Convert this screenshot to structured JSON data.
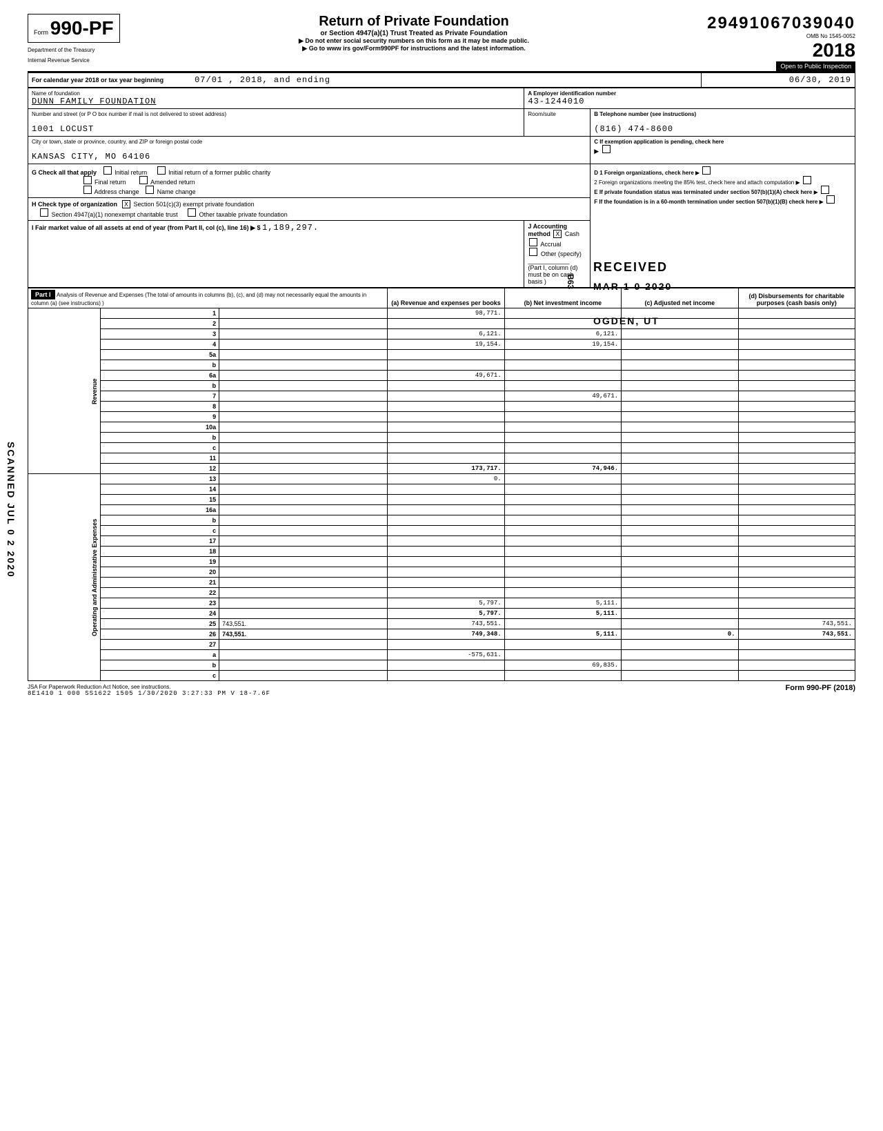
{
  "header": {
    "form_number": "990-PF",
    "form_prefix": "Form",
    "dept1": "Department of the Treasury",
    "dept2": "Internal Revenue Service",
    "title": "Return of Private Foundation",
    "subtitle": "or Section 4947(a)(1) Trust Treated as Private Foundation",
    "instr1": "▶ Do not enter social security numbers on this form as it may be made public.",
    "instr2": "▶ Go to www irs gov/Form990PF for instructions and the latest information.",
    "stamp_number": "29491067039040",
    "omb": "OMB No 1545-0052",
    "year": "2018",
    "open": "Open to Public Inspection"
  },
  "period": {
    "line": "For calendar year 2018 or tax year beginning",
    "begin": "07/01 , 2018, and ending",
    "end": "06/30, 2019"
  },
  "foundation": {
    "name_label": "Name of foundation",
    "name": "DUNN FAMILY FOUNDATION",
    "street_label": "Number and street (or P O  box number if mail is not delivered to street address)",
    "street": "1001 LOCUST",
    "room_label": "Room/suite",
    "city_label": "City or town, state or province, country, and ZIP or foreign postal code",
    "city": "KANSAS CITY, MO 64106",
    "ein_label": "A  Employer identification number",
    "ein": "43-1244010",
    "phone_label": "B  Telephone number (see instructions)",
    "phone": "(816) 474-8600",
    "c_label": "C  If exemption application is pending, check here",
    "d1": "D 1 Foreign organizations, check here",
    "d2": "2 Foreign organizations meeting the 85% test, check here and attach computation",
    "e": "E  If private foundation status was terminated under section 507(b)(1)(A) check here",
    "f": "F  If the foundation is in a 60-month termination under section 507(b)(1)(B) check here"
  },
  "checks": {
    "g_label": "G  Check all that apply",
    "g_initial": "Initial return",
    "g_initial_former": "Initial return of a former public charity",
    "g_final": "Final return",
    "g_amended": "Amended return",
    "g_address": "Address change",
    "g_name": "Name change",
    "h_label": "H  Check type of organization",
    "h_501c3": "Section 501(c)(3) exempt private foundation",
    "h_4947": "Section 4947(a)(1) nonexempt charitable trust",
    "h_other_tax": "Other taxable private foundation",
    "i_label": "I   Fair market value of all assets at end of year (from Part II, col (c), line 16) ▶ $",
    "i_value": "1,189,297.",
    "j_label": "J Accounting method",
    "j_cash": "Cash",
    "j_accrual": "Accrual",
    "j_other": "Other (specify)",
    "j_note": "(Part I, column (d) must be on cash basis )"
  },
  "part1": {
    "header": "Part I",
    "title": "Analysis of Revenue and Expenses (The total of amounts in columns (b), (c), and (d) may not necessarily equal the amounts in column (a) (see instructions) )",
    "col_a": "(a) Revenue and expenses per books",
    "col_b": "(b) Net investment income",
    "col_c": "(c) Adjusted net income",
    "col_d": "(d) Disbursements for charitable purposes (cash basis only)"
  },
  "rows": [
    {
      "n": "1",
      "d": "",
      "a": "98,771.",
      "b": "",
      "c": ""
    },
    {
      "n": "2",
      "d": "",
      "a": "",
      "b": "",
      "c": ""
    },
    {
      "n": "3",
      "d": "",
      "a": "6,121.",
      "b": "6,121.",
      "c": ""
    },
    {
      "n": "4",
      "d": "",
      "a": "19,154.",
      "b": "19,154.",
      "c": ""
    },
    {
      "n": "5a",
      "d": "",
      "a": "",
      "b": "",
      "c": ""
    },
    {
      "n": "b",
      "d": "",
      "a": "",
      "b": "",
      "c": ""
    },
    {
      "n": "6a",
      "d": "",
      "a": "49,671.",
      "b": "",
      "c": ""
    },
    {
      "n": "b",
      "d": "",
      "a": "",
      "b": "",
      "c": ""
    },
    {
      "n": "7",
      "d": "",
      "a": "",
      "b": "49,671.",
      "c": ""
    },
    {
      "n": "8",
      "d": "",
      "a": "",
      "b": "",
      "c": ""
    },
    {
      "n": "9",
      "d": "",
      "a": "",
      "b": "",
      "c": ""
    },
    {
      "n": "10a",
      "d": "",
      "a": "",
      "b": "",
      "c": ""
    },
    {
      "n": "b",
      "d": "",
      "a": "",
      "b": "",
      "c": ""
    },
    {
      "n": "c",
      "d": "",
      "a": "",
      "b": "",
      "c": ""
    },
    {
      "n": "11",
      "d": "",
      "a": "",
      "b": "",
      "c": ""
    },
    {
      "n": "12",
      "d": "",
      "a": "173,717.",
      "b": "74,946.",
      "c": "",
      "bold": true
    },
    {
      "n": "13",
      "d": "",
      "a": "0.",
      "b": "",
      "c": ""
    },
    {
      "n": "14",
      "d": "",
      "a": "",
      "b": "",
      "c": ""
    },
    {
      "n": "15",
      "d": "",
      "a": "",
      "b": "",
      "c": ""
    },
    {
      "n": "16a",
      "d": "",
      "a": "",
      "b": "",
      "c": ""
    },
    {
      "n": "b",
      "d": "",
      "a": "",
      "b": "",
      "c": ""
    },
    {
      "n": "c",
      "d": "",
      "a": "",
      "b": "",
      "c": ""
    },
    {
      "n": "17",
      "d": "",
      "a": "",
      "b": "",
      "c": ""
    },
    {
      "n": "18",
      "d": "",
      "a": "",
      "b": "",
      "c": ""
    },
    {
      "n": "19",
      "d": "",
      "a": "",
      "b": "",
      "c": ""
    },
    {
      "n": "20",
      "d": "",
      "a": "",
      "b": "",
      "c": ""
    },
    {
      "n": "21",
      "d": "",
      "a": "",
      "b": "",
      "c": ""
    },
    {
      "n": "22",
      "d": "",
      "a": "",
      "b": "",
      "c": ""
    },
    {
      "n": "23",
      "d": "",
      "a": "5,797.",
      "b": "5,111.",
      "c": ""
    },
    {
      "n": "24",
      "d": "",
      "a": "5,797.",
      "b": "5,111.",
      "c": "",
      "bold": true
    },
    {
      "n": "25",
      "d": "743,551.",
      "a": "743,551.",
      "b": "",
      "c": ""
    },
    {
      "n": "26",
      "d": "743,551.",
      "a": "749,348.",
      "b": "5,111.",
      "c": "0.",
      "bold": true
    },
    {
      "n": "27",
      "d": "",
      "a": "",
      "b": "",
      "c": ""
    },
    {
      "n": "a",
      "d": "",
      "a": "-575,631.",
      "b": "",
      "c": ""
    },
    {
      "n": "b",
      "d": "",
      "a": "",
      "b": "69,835.",
      "c": ""
    },
    {
      "n": "c",
      "d": "",
      "a": "",
      "b": "",
      "c": ""
    }
  ],
  "side_labels": {
    "revenue": "Revenue",
    "expenses": "Operating and Administrative Expenses"
  },
  "stamps": {
    "received": "RECEIVED",
    "date": "MAR 1 0 2020",
    "ogden": "OGDEN, UT",
    "scanned": "SCANNED  JUL 0 2 2020",
    "b63": "B63"
  },
  "footer": {
    "jsa": "JSA For Paperwork Reduction Act Notice, see instructions.",
    "code": "8E1410 1 000  SS1622 1505  1/30/2020   3:27:33 PM   V 18-7.6F",
    "form": "Form 990-PF (2018)"
  }
}
